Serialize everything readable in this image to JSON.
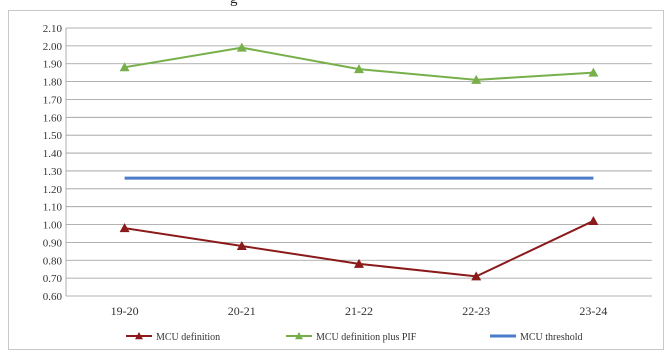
{
  "header_fragment": "g",
  "chart_data": {
    "type": "line",
    "title": "",
    "xlabel": "",
    "ylabel": "",
    "categories": [
      "19-20",
      "20-21",
      "21-22",
      "22-23",
      "23-24"
    ],
    "ylim": [
      0.6,
      2.1
    ],
    "ytick_step": 0.1,
    "yticks": [
      "0.60",
      "0.70",
      "0.80",
      "0.90",
      "1.00",
      "1.10",
      "1.20",
      "1.30",
      "1.40",
      "1.50",
      "1.60",
      "1.70",
      "1.80",
      "1.90",
      "2.00",
      "2.10"
    ],
    "grid": true,
    "legend_position": "bottom",
    "series": [
      {
        "name": "MCU definition",
        "values": [
          0.98,
          0.88,
          0.78,
          0.71,
          1.02
        ],
        "color": "#8b1a1a",
        "marker": "triangle"
      },
      {
        "name": "MCU definition plus PIF",
        "values": [
          1.88,
          1.99,
          1.87,
          1.81,
          1.85
        ],
        "color": "#77b04a",
        "marker": "triangle"
      },
      {
        "name": "MCU threshold",
        "values": [
          1.26,
          1.26,
          1.26,
          1.26,
          1.26
        ],
        "color": "#4a7cc9",
        "marker": "none"
      }
    ]
  }
}
